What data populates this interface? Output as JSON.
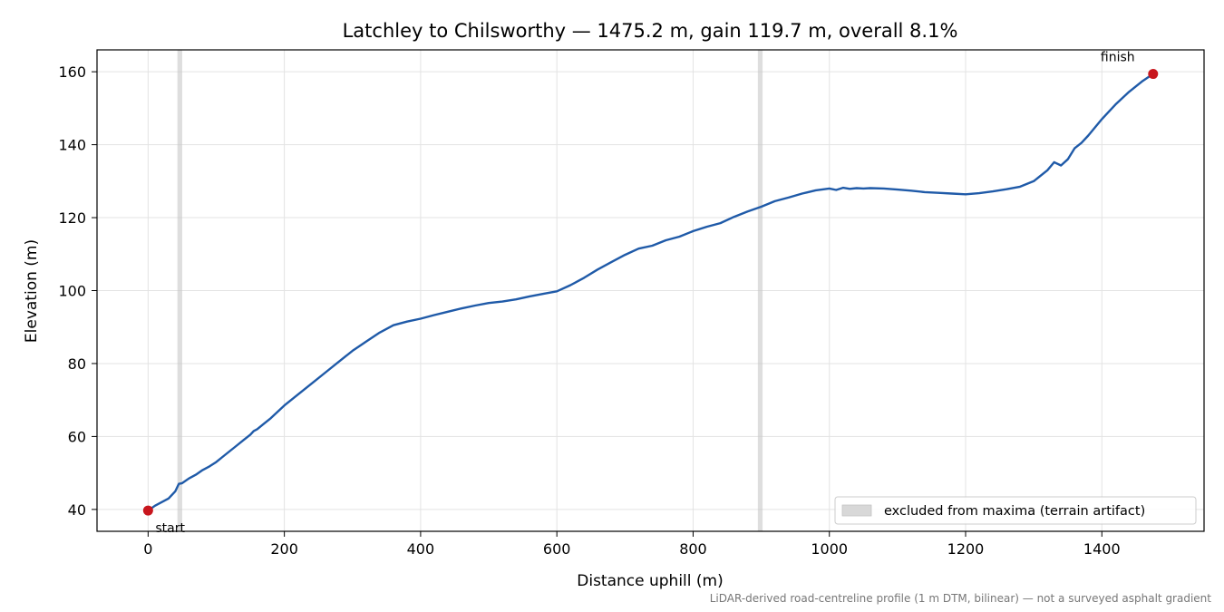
{
  "chart_data": {
    "type": "line",
    "title": "Latchley to Chilsworthy — 1475.2 m, gain 119.7 m, overall 8.1%",
    "xlabel": "Distance uphill (m)",
    "ylabel": "Elevation (m)",
    "xlim": [
      -75,
      1550
    ],
    "ylim": [
      34,
      166
    ],
    "xticks": [
      0,
      200,
      400,
      600,
      800,
      1000,
      1200,
      1400
    ],
    "yticks": [
      40,
      60,
      80,
      100,
      120,
      140,
      160
    ],
    "grid": true,
    "series": [
      {
        "color": "#1f5aa8",
        "x": [
          0,
          10,
          20,
          30,
          40,
          45,
          50,
          60,
          70,
          80,
          90,
          100,
          110,
          120,
          130,
          140,
          150,
          155,
          160,
          170,
          180,
          200,
          220,
          240,
          260,
          280,
          300,
          320,
          340,
          360,
          380,
          400,
          420,
          440,
          460,
          480,
          500,
          520,
          540,
          560,
          580,
          600,
          620,
          640,
          660,
          680,
          700,
          720,
          740,
          760,
          780,
          800,
          820,
          840,
          860,
          880,
          900,
          920,
          940,
          960,
          980,
          1000,
          1010,
          1020,
          1030,
          1040,
          1050,
          1060,
          1080,
          1100,
          1120,
          1140,
          1160,
          1180,
          1200,
          1220,
          1240,
          1260,
          1280,
          1300,
          1320,
          1330,
          1340,
          1350,
          1360,
          1370,
          1380,
          1400,
          1420,
          1440,
          1460,
          1475.2
        ],
        "y": [
          39.7,
          41.0,
          42.0,
          43.0,
          45.0,
          47.0,
          47.2,
          48.5,
          49.5,
          50.8,
          51.8,
          53.0,
          54.5,
          56.0,
          57.5,
          59.0,
          60.5,
          61.5,
          62.0,
          63.5,
          65.0,
          68.5,
          71.5,
          74.5,
          77.5,
          80.5,
          83.5,
          86.0,
          88.5,
          90.5,
          91.5,
          92.3,
          93.3,
          94.2,
          95.1,
          95.9,
          96.6,
          97.0,
          97.6,
          98.4,
          99.1,
          99.8,
          101.5,
          103.5,
          105.8,
          107.8,
          109.8,
          111.5,
          112.3,
          113.8,
          114.8,
          116.3,
          117.5,
          118.5,
          120.2,
          121.7,
          123.0,
          124.5,
          125.5,
          126.6,
          127.5,
          128.0,
          127.6,
          128.2,
          127.9,
          128.1,
          128.0,
          128.1,
          128.0,
          127.7,
          127.4,
          127.0,
          126.8,
          126.6,
          126.4,
          126.7,
          127.2,
          127.8,
          128.5,
          130.0,
          133.0,
          135.2,
          134.3,
          136.0,
          139.0,
          140.5,
          142.5,
          147.0,
          151.0,
          154.5,
          157.5,
          159.4
        ]
      }
    ],
    "points": [
      {
        "x": 0,
        "y": 39.7,
        "label": "start",
        "color": "#c8161d"
      },
      {
        "x": 1475.2,
        "y": 159.4,
        "label": "finish",
        "color": "#c8161d"
      }
    ],
    "excluded_bands": [
      [
        43,
        50
      ],
      [
        895,
        902
      ]
    ],
    "legend": {
      "position": "lower-right",
      "label": "excluded from maxima (terrain artifact)"
    },
    "footnote": "LiDAR-derived road-centreline profile (1 m DTM, bilinear) — not a surveyed asphalt gradient"
  }
}
